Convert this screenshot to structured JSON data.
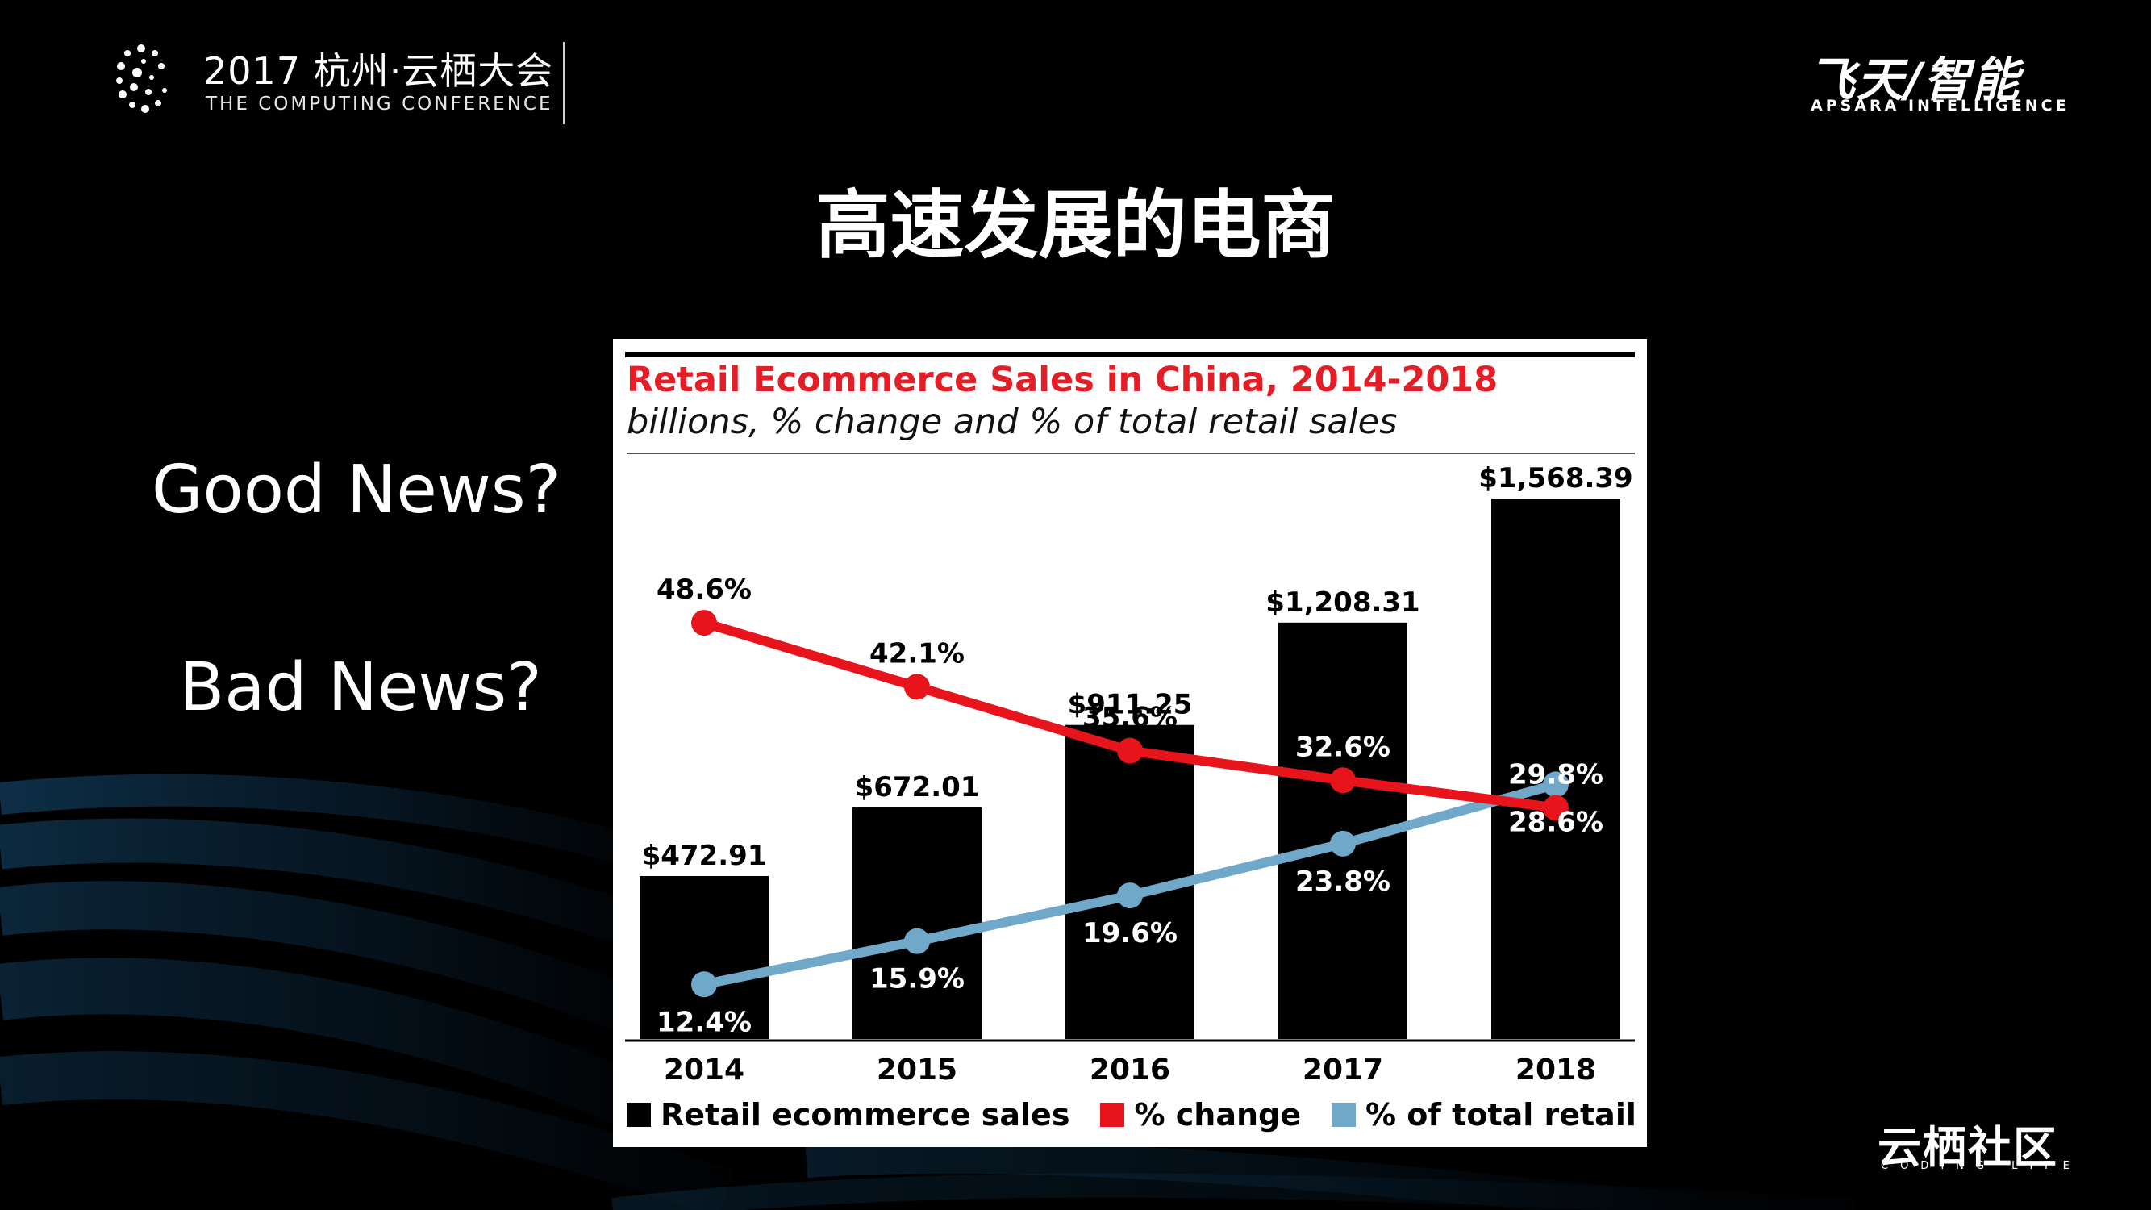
{
  "header": {
    "conference_title": "2017 杭州·云栖大会",
    "conference_subtitle": "THE COMPUTING CONFERENCE",
    "brand_main": "飞天/智能",
    "brand_sub": "APSARA INTELLIGENCE"
  },
  "slide": {
    "title": "高速发展的电商",
    "good_news": "Good News?",
    "bad_news": "Bad News?"
  },
  "footer": {
    "logo": "云栖社区",
    "tagline": "CODING LIFE"
  },
  "colors": {
    "bars": "#000000",
    "change_line": "#e8141c",
    "share_line": "#6fa8c8",
    "title_red": "#e41e26"
  },
  "chart_data": {
    "type": "bar",
    "title": "Retail Ecommerce Sales in China, 2014-2018",
    "subtitle": "billions, % change and % of total retail sales",
    "categories": [
      "2014",
      "2015",
      "2016",
      "2017",
      "2018"
    ],
    "series": [
      {
        "name": "Retail ecommerce sales",
        "type": "bar",
        "values": [
          472.91,
          672.01,
          911.25,
          1208.31,
          1568.39
        ],
        "labels": [
          "$472.91",
          "$672.01",
          "$911.25",
          "$1,208.31",
          "$1,568.39"
        ]
      },
      {
        "name": "% change",
        "type": "line",
        "values": [
          48.6,
          42.1,
          35.6,
          32.6,
          29.8
        ],
        "labels": [
          "48.6%",
          "42.1%",
          "35.6%",
          "32.6%",
          "29.8%"
        ]
      },
      {
        "name": "% of total retail sales",
        "type": "line",
        "values": [
          12.4,
          15.9,
          19.6,
          23.8,
          28.6
        ],
        "labels": [
          "12.4%",
          "15.9%",
          "19.6%",
          "23.8%",
          "28.6%"
        ]
      }
    ],
    "grid": false,
    "legend_position": "bottom",
    "bar_ylim": [
      0,
      1568.39
    ],
    "pct_ylim": [
      0,
      60
    ]
  }
}
